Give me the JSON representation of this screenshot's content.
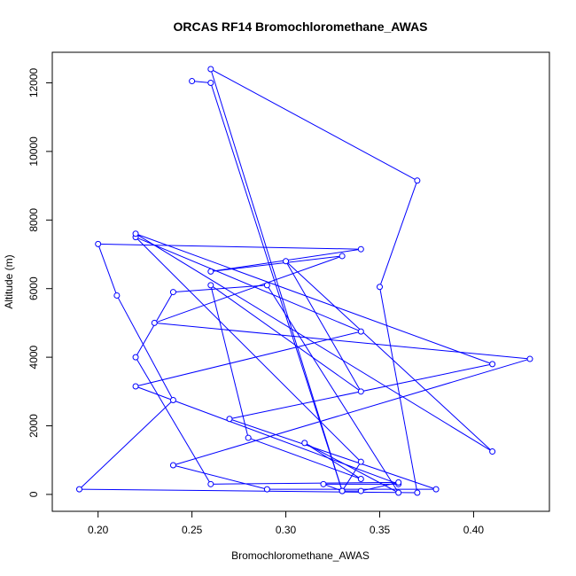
{
  "chart_data": {
    "type": "line",
    "title": "ORCAS RF14 Bromochloromethane_AWAS",
    "xlabel": "Bromochloromethane_AWAS",
    "ylabel": "Altitude (m)",
    "xlim": [
      0.19,
      0.43
    ],
    "ylim": [
      50,
      12400
    ],
    "x_ticks": [
      0.2,
      0.25,
      0.3,
      0.35,
      0.4
    ],
    "x_tick_labels": [
      "0.20",
      "0.25",
      "0.30",
      "0.35",
      "0.40"
    ],
    "y_ticks": [
      0,
      2000,
      4000,
      6000,
      8000,
      10000,
      12000
    ],
    "y_tick_labels": [
      "0",
      "2000",
      "4000",
      "6000",
      "8000",
      "10000",
      "12000"
    ],
    "grid": false,
    "series": [
      {
        "color": "#0000ff",
        "marker": "open-circle",
        "points": [
          [
            0.25,
            12050
          ],
          [
            0.26,
            12000
          ],
          [
            0.33,
            100
          ],
          [
            0.34,
            950
          ],
          [
            0.22,
            7500
          ],
          [
            0.34,
            4750
          ],
          [
            0.22,
            3150
          ],
          [
            0.36,
            300
          ],
          [
            0.32,
            300
          ],
          [
            0.33,
            100
          ],
          [
            0.26,
            12400
          ],
          [
            0.37,
            9150
          ],
          [
            0.35,
            6050
          ],
          [
            0.37,
            50
          ],
          [
            0.19,
            150
          ],
          [
            0.24,
            2750
          ],
          [
            0.21,
            5800
          ],
          [
            0.2,
            7300
          ],
          [
            0.34,
            7150
          ],
          [
            0.26,
            6500
          ],
          [
            0.33,
            6950
          ],
          [
            0.23,
            5000
          ],
          [
            0.43,
            3950
          ],
          [
            0.24,
            850
          ],
          [
            0.29,
            150
          ],
          [
            0.38,
            150
          ],
          [
            0.27,
            2200
          ],
          [
            0.41,
            3800
          ],
          [
            0.22,
            7600
          ],
          [
            0.41,
            1250
          ],
          [
            0.3,
            6800
          ],
          [
            0.34,
            3000
          ],
          [
            0.26,
            6100
          ],
          [
            0.28,
            1650
          ],
          [
            0.34,
            450
          ],
          [
            0.31,
            1500
          ],
          [
            0.36,
            50
          ],
          [
            0.29,
            6100
          ],
          [
            0.24,
            5900
          ],
          [
            0.22,
            4000
          ],
          [
            0.26,
            300
          ],
          [
            0.36,
            350
          ],
          [
            0.34,
            100
          ],
          [
            0.33,
            100
          ]
        ]
      }
    ]
  }
}
